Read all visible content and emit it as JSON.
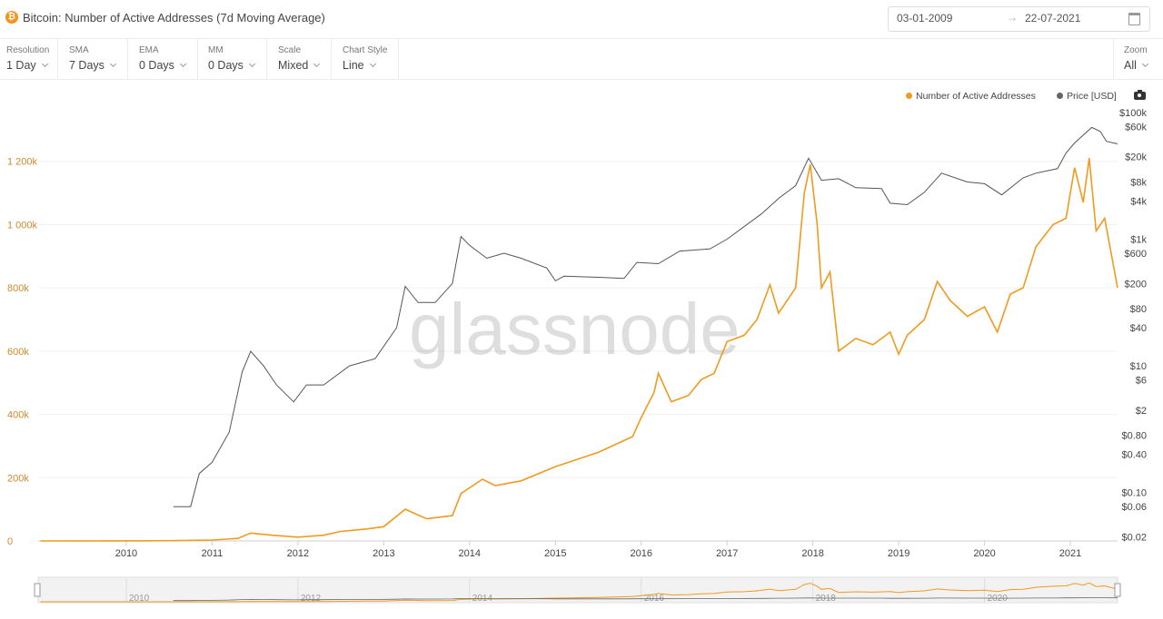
{
  "header": {
    "title": "Bitcoin: Number of Active Addresses (7d Moving Average)",
    "logo_text": "₿",
    "date_from": "03-01-2009",
    "date_arrow": "→",
    "date_to": "22-07-2021"
  },
  "controls": [
    {
      "label": "Resolution",
      "value": "1 Day"
    },
    {
      "label": "SMA",
      "value": "7 Days"
    },
    {
      "label": "EMA",
      "value": "0 Days"
    },
    {
      "label": "MM",
      "value": "0 Days"
    },
    {
      "label": "Scale",
      "value": "Mixed"
    },
    {
      "label": "Chart Style",
      "value": "Line"
    }
  ],
  "zoom": {
    "label": "Zoom",
    "value": "All"
  },
  "watermark": "glassnode",
  "colors": {
    "addresses": "#f09a1e",
    "price": "#555555"
  },
  "chart_data": {
    "type": "line",
    "title": "Bitcoin: Number of Active Addresses (7d Moving Average)",
    "legend_position": "top-right",
    "grid": true,
    "x_ticks": [
      "2010",
      "2011",
      "2012",
      "2013",
      "2014",
      "2015",
      "2016",
      "2017",
      "2018",
      "2019",
      "2020",
      "2021"
    ],
    "navigator_ticks": [
      "2010",
      "2012",
      "2014",
      "2016",
      "2018",
      "2020"
    ],
    "y_left": {
      "scale": "linear",
      "range": [
        0,
        1400000
      ],
      "ticks": [
        0,
        200000,
        400000,
        600000,
        800000,
        1000000,
        1200000
      ],
      "tick_labels": [
        "0",
        "200k",
        "400k",
        "600k",
        "800k",
        "1 000k",
        "1 200k"
      ]
    },
    "y_right": {
      "scale": "log",
      "tick_labels": [
        "$100k",
        "$60k",
        "$20k",
        "$8k",
        "$4k",
        "$1k",
        "$600",
        "$200",
        "$80",
        "$40",
        "$10",
        "$6",
        "$2",
        "$0.80",
        "$0.40",
        "$0.10",
        "$0.06",
        "$0.02"
      ],
      "tick_values": [
        100000,
        60000,
        20000,
        8000,
        4000,
        1000,
        600,
        200,
        80,
        40,
        10,
        6,
        2,
        0.8,
        0.4,
        0.1,
        0.06,
        0.02
      ]
    },
    "series": [
      {
        "name": "Number of Active Addresses",
        "axis": "left",
        "points": [
          [
            2009.0,
            0
          ],
          [
            2010.0,
            200
          ],
          [
            2010.5,
            800
          ],
          [
            2011.0,
            3000
          ],
          [
            2011.3,
            8000
          ],
          [
            2011.45,
            25000
          ],
          [
            2011.7,
            18000
          ],
          [
            2012.0,
            12000
          ],
          [
            2012.3,
            18000
          ],
          [
            2012.5,
            30000
          ],
          [
            2012.8,
            38000
          ],
          [
            2013.0,
            45000
          ],
          [
            2013.25,
            100000
          ],
          [
            2013.5,
            70000
          ],
          [
            2013.8,
            80000
          ],
          [
            2013.9,
            150000
          ],
          [
            2014.15,
            195000
          ],
          [
            2014.3,
            175000
          ],
          [
            2014.6,
            190000
          ],
          [
            2015.0,
            235000
          ],
          [
            2015.5,
            280000
          ],
          [
            2015.9,
            330000
          ],
          [
            2016.0,
            390000
          ],
          [
            2016.15,
            470000
          ],
          [
            2016.2,
            530000
          ],
          [
            2016.35,
            440000
          ],
          [
            2016.55,
            460000
          ],
          [
            2016.7,
            510000
          ],
          [
            2016.85,
            530000
          ],
          [
            2017.0,
            630000
          ],
          [
            2017.2,
            650000
          ],
          [
            2017.35,
            700000
          ],
          [
            2017.5,
            810000
          ],
          [
            2017.6,
            720000
          ],
          [
            2017.7,
            760000
          ],
          [
            2017.8,
            800000
          ],
          [
            2017.9,
            1100000
          ],
          [
            2017.97,
            1190000
          ],
          [
            2018.05,
            1000000
          ],
          [
            2018.1,
            800000
          ],
          [
            2018.2,
            850000
          ],
          [
            2018.3,
            600000
          ],
          [
            2018.5,
            640000
          ],
          [
            2018.7,
            620000
          ],
          [
            2018.9,
            660000
          ],
          [
            2019.0,
            590000
          ],
          [
            2019.1,
            650000
          ],
          [
            2019.3,
            700000
          ],
          [
            2019.45,
            820000
          ],
          [
            2019.6,
            760000
          ],
          [
            2019.8,
            710000
          ],
          [
            2020.0,
            740000
          ],
          [
            2020.15,
            660000
          ],
          [
            2020.3,
            780000
          ],
          [
            2020.45,
            800000
          ],
          [
            2020.6,
            930000
          ],
          [
            2020.8,
            1000000
          ],
          [
            2020.95,
            1020000
          ],
          [
            2021.05,
            1180000
          ],
          [
            2021.15,
            1070000
          ],
          [
            2021.22,
            1210000
          ],
          [
            2021.3,
            980000
          ],
          [
            2021.4,
            1020000
          ],
          [
            2021.55,
            800000
          ]
        ]
      },
      {
        "name": "Price [USD]",
        "axis": "right",
        "points": [
          [
            2010.55,
            0.06
          ],
          [
            2010.75,
            0.06
          ],
          [
            2010.85,
            0.2
          ],
          [
            2011.0,
            0.3
          ],
          [
            2011.2,
            0.9
          ],
          [
            2011.35,
            8
          ],
          [
            2011.45,
            17
          ],
          [
            2011.6,
            10
          ],
          [
            2011.75,
            5
          ],
          [
            2011.95,
            2.7
          ],
          [
            2012.1,
            5
          ],
          [
            2012.3,
            5
          ],
          [
            2012.6,
            10
          ],
          [
            2012.9,
            13
          ],
          [
            2013.15,
            40
          ],
          [
            2013.25,
            180
          ],
          [
            2013.4,
            100
          ],
          [
            2013.6,
            100
          ],
          [
            2013.8,
            200
          ],
          [
            2013.9,
            1100
          ],
          [
            2014.0,
            800
          ],
          [
            2014.2,
            500
          ],
          [
            2014.4,
            600
          ],
          [
            2014.6,
            500
          ],
          [
            2014.9,
            350
          ],
          [
            2015.0,
            220
          ],
          [
            2015.1,
            260
          ],
          [
            2015.5,
            250
          ],
          [
            2015.8,
            240
          ],
          [
            2015.95,
            430
          ],
          [
            2016.2,
            410
          ],
          [
            2016.45,
            650
          ],
          [
            2016.8,
            700
          ],
          [
            2017.0,
            1000
          ],
          [
            2017.4,
            2500
          ],
          [
            2017.6,
            4400
          ],
          [
            2017.8,
            7000
          ],
          [
            2017.95,
            19000
          ],
          [
            2018.1,
            8500
          ],
          [
            2018.3,
            9000
          ],
          [
            2018.5,
            6500
          ],
          [
            2018.8,
            6300
          ],
          [
            2018.9,
            3700
          ],
          [
            2019.1,
            3500
          ],
          [
            2019.3,
            5500
          ],
          [
            2019.5,
            11000
          ],
          [
            2019.8,
            8000
          ],
          [
            2020.0,
            7500
          ],
          [
            2020.2,
            5000
          ],
          [
            2020.45,
            9300
          ],
          [
            2020.6,
            11000
          ],
          [
            2020.85,
            13000
          ],
          [
            2020.95,
            23000
          ],
          [
            2021.05,
            33000
          ],
          [
            2021.25,
            58000
          ],
          [
            2021.35,
            50000
          ],
          [
            2021.42,
            35000
          ],
          [
            2021.55,
            32000
          ]
        ]
      }
    ]
  }
}
